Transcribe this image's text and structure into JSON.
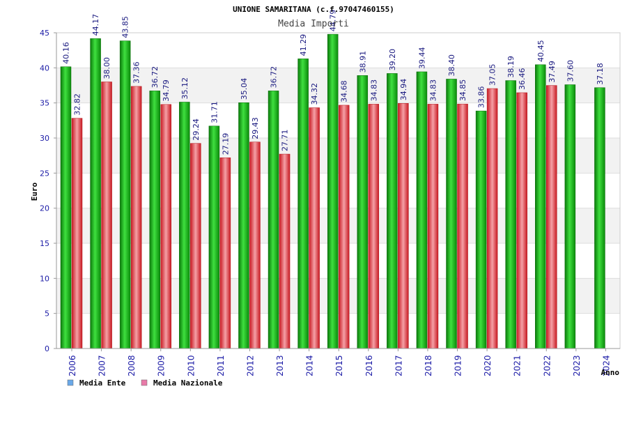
{
  "chart_data": {
    "type": "bar",
    "title": "UNIONE SAMARITANA (c.f.97047460155)",
    "subtitle": "Media Importi",
    "xlabel": "Anno",
    "ylabel": "Euro",
    "ylim": [
      0,
      45
    ],
    "yticks": [
      "0",
      "5",
      "10",
      "15",
      "20",
      "25",
      "30",
      "35",
      "40",
      "45"
    ],
    "grid": true,
    "legend_position": "bottom-left",
    "categories": [
      "2006",
      "2007",
      "2008",
      "2009",
      "2010",
      "2011",
      "2012",
      "2013",
      "2014",
      "2015",
      "2016",
      "2017",
      "2018",
      "2019",
      "2020",
      "2021",
      "2022",
      "2023",
      "2024"
    ],
    "series": [
      {
        "name": "Media Ente",
        "legend_color": "#6aa8e8",
        "bar_color": "#1fb81f",
        "values": [
          40.16,
          44.17,
          43.85,
          36.72,
          35.12,
          31.71,
          35.04,
          36.72,
          41.29,
          44.79,
          38.91,
          39.2,
          39.44,
          38.4,
          33.86,
          38.19,
          40.45,
          37.6,
          37.18
        ],
        "labels": [
          "40.16",
          "44.17",
          "43.85",
          "36.72",
          "35.12",
          "31.71",
          "35.04",
          "36.72",
          "41.29",
          "44.79",
          "38.91",
          "39.20",
          "39.44",
          "38.40",
          "33.86",
          "38.19",
          "40.45",
          "37.60",
          "37.18"
        ]
      },
      {
        "name": "Media Nazionale",
        "legend_color": "#e87aa8",
        "bar_color": "#e8333a",
        "values": [
          32.82,
          38.0,
          37.36,
          34.79,
          29.24,
          27.19,
          29.43,
          27.71,
          34.32,
          34.68,
          34.83,
          34.94,
          34.83,
          34.85,
          37.05,
          36.46,
          37.49,
          null,
          null
        ],
        "labels": [
          "32.82",
          "38.00",
          "37.36",
          "34.79",
          "29.24",
          "27.19",
          "29.43",
          "27.71",
          "34.32",
          "34.68",
          "34.83",
          "34.94",
          "34.83",
          "34.85",
          "37.05",
          "36.46",
          "37.49",
          "",
          ""
        ]
      }
    ]
  }
}
